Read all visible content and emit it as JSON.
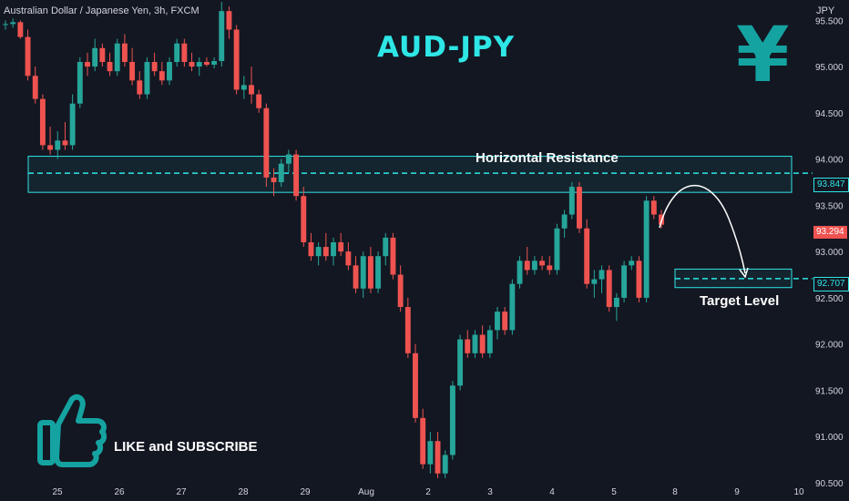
{
  "header": {
    "symbol": "Australian Dollar / Japanese Yen, 3h, FXCM",
    "title": "AUD-JPY",
    "currency": "JPY",
    "yen_sign": "¥"
  },
  "annotations": {
    "resistance_label": "Horizontal Resistance",
    "target_label": "Target Level",
    "cta_label": "LIKE and SUBSCRIBE"
  },
  "colors": {
    "background": "#131722",
    "up": "#26a69a",
    "down": "#ef5350",
    "accent": "#2ee6e6",
    "yen": "#14a3a0",
    "axis_text": "#d1d4dc"
  },
  "price_tags": {
    "resistance": "93.847",
    "current": "93.294",
    "target": "92.707"
  },
  "chart_data": {
    "type": "candlestick",
    "ylim": [
      90.45,
      95.72
    ],
    "yticks": [
      "95.500",
      "95.000",
      "94.500",
      "94.000",
      "93.500",
      "93.000",
      "92.500",
      "92.000",
      "91.500",
      "91.000",
      "90.500"
    ],
    "xticks": [
      "25",
      "26",
      "27",
      "28",
      "29",
      "Aug",
      "2",
      "3",
      "4",
      "5",
      "8",
      "9",
      "10"
    ],
    "resistance_zone": [
      93.64,
      94.03
    ],
    "resistance_level": 93.847,
    "target_zone": [
      92.61,
      92.81
    ],
    "target_level": 92.707,
    "candles": [
      [
        95.45,
        95.5,
        95.4,
        95.46
      ],
      [
        95.46,
        95.52,
        95.42,
        95.48
      ],
      [
        95.48,
        95.5,
        95.3,
        95.32
      ],
      [
        95.32,
        95.4,
        94.85,
        94.9
      ],
      [
        94.9,
        95.0,
        94.6,
        94.65
      ],
      [
        94.65,
        94.7,
        94.1,
        94.15
      ],
      [
        94.15,
        94.35,
        94.05,
        94.1
      ],
      [
        94.1,
        94.3,
        94.0,
        94.2
      ],
      [
        94.2,
        94.4,
        94.1,
        94.15
      ],
      [
        94.15,
        94.7,
        94.1,
        94.6
      ],
      [
        94.6,
        95.1,
        94.55,
        95.05
      ],
      [
        95.05,
        95.15,
        94.9,
        95.0
      ],
      [
        95.0,
        95.3,
        94.95,
        95.2
      ],
      [
        95.2,
        95.25,
        95.0,
        95.05
      ],
      [
        95.05,
        95.15,
        94.9,
        94.95
      ],
      [
        94.95,
        95.3,
        94.9,
        95.25
      ],
      [
        95.25,
        95.35,
        95.0,
        95.05
      ],
      [
        95.05,
        95.2,
        94.8,
        94.85
      ],
      [
        94.85,
        94.95,
        94.65,
        94.7
      ],
      [
        94.7,
        95.1,
        94.65,
        95.05
      ],
      [
        95.05,
        95.15,
        94.9,
        94.95
      ],
      [
        94.95,
        95.05,
        94.8,
        94.85
      ],
      [
        94.85,
        95.1,
        94.8,
        95.05
      ],
      [
        95.05,
        95.3,
        95.0,
        95.25
      ],
      [
        95.25,
        95.3,
        95.0,
        95.05
      ],
      [
        95.05,
        95.15,
        94.95,
        95.0
      ],
      [
        95.0,
        95.1,
        94.9,
        95.05
      ],
      [
        95.05,
        95.1,
        95.0,
        95.02
      ],
      [
        95.02,
        95.1,
        94.98,
        95.06
      ],
      [
        95.06,
        95.7,
        95.0,
        95.6
      ],
      [
        95.6,
        95.65,
        95.3,
        95.4
      ],
      [
        95.4,
        95.45,
        94.7,
        94.75
      ],
      [
        94.75,
        94.9,
        94.65,
        94.8
      ],
      [
        94.8,
        95.0,
        94.6,
        94.7
      ],
      [
        94.7,
        94.75,
        94.5,
        94.55
      ],
      [
        94.55,
        94.6,
        93.7,
        93.8
      ],
      [
        93.8,
        93.9,
        93.6,
        93.75
      ],
      [
        93.75,
        94.0,
        93.7,
        93.95
      ],
      [
        93.95,
        94.1,
        93.85,
        94.05
      ],
      [
        94.05,
        94.1,
        93.55,
        93.6
      ],
      [
        93.6,
        93.7,
        93.05,
        93.1
      ],
      [
        93.1,
        93.2,
        92.9,
        92.95
      ],
      [
        92.95,
        93.1,
        92.85,
        93.05
      ],
      [
        93.05,
        93.2,
        92.9,
        92.95
      ],
      [
        92.95,
        93.15,
        92.85,
        93.1
      ],
      [
        93.1,
        93.2,
        92.95,
        93.0
      ],
      [
        93.0,
        93.1,
        92.8,
        92.85
      ],
      [
        92.85,
        92.95,
        92.55,
        92.6
      ],
      [
        92.6,
        93.0,
        92.5,
        92.95
      ],
      [
        92.95,
        93.05,
        92.55,
        92.6
      ],
      [
        92.6,
        93.0,
        92.55,
        92.95
      ],
      [
        92.95,
        93.2,
        92.85,
        93.15
      ],
      [
        93.15,
        93.2,
        92.7,
        92.75
      ],
      [
        92.75,
        92.85,
        92.35,
        92.4
      ],
      [
        92.4,
        92.5,
        91.85,
        91.9
      ],
      [
        91.9,
        92.0,
        91.15,
        91.2
      ],
      [
        91.2,
        91.3,
        90.65,
        90.7
      ],
      [
        90.7,
        91.05,
        90.6,
        90.95
      ],
      [
        90.95,
        91.05,
        90.55,
        90.6
      ],
      [
        90.6,
        90.85,
        90.55,
        90.8
      ],
      [
        90.8,
        91.6,
        90.75,
        91.55
      ],
      [
        91.55,
        92.1,
        91.5,
        92.05
      ],
      [
        92.05,
        92.15,
        91.85,
        91.9
      ],
      [
        91.9,
        92.15,
        91.85,
        92.1
      ],
      [
        92.1,
        92.2,
        91.85,
        91.9
      ],
      [
        91.9,
        92.2,
        91.85,
        92.15
      ],
      [
        92.15,
        92.4,
        92.05,
        92.35
      ],
      [
        92.35,
        92.4,
        92.1,
        92.15
      ],
      [
        92.15,
        92.7,
        92.1,
        92.65
      ],
      [
        92.65,
        92.95,
        92.6,
        92.9
      ],
      [
        92.9,
        93.05,
        92.75,
        92.8
      ],
      [
        92.8,
        92.95,
        92.75,
        92.9
      ],
      [
        92.9,
        92.95,
        92.8,
        92.85
      ],
      [
        92.85,
        92.95,
        92.75,
        92.8
      ],
      [
        92.8,
        93.3,
        92.75,
        93.25
      ],
      [
        93.25,
        93.45,
        93.15,
        93.4
      ],
      [
        93.4,
        93.75,
        93.35,
        93.7
      ],
      [
        93.7,
        93.75,
        93.2,
        93.25
      ],
      [
        93.25,
        93.35,
        92.6,
        92.65
      ],
      [
        92.65,
        92.8,
        92.5,
        92.7
      ],
      [
        92.7,
        92.85,
        92.55,
        92.8
      ],
      [
        92.8,
        92.85,
        92.35,
        92.4
      ],
      [
        92.4,
        92.55,
        92.25,
        92.5
      ],
      [
        92.5,
        92.9,
        92.45,
        92.85
      ],
      [
        92.85,
        92.95,
        92.8,
        92.9
      ],
      [
        92.9,
        92.95,
        92.45,
        92.5
      ],
      [
        92.5,
        93.6,
        92.45,
        93.55
      ],
      [
        93.55,
        93.6,
        93.35,
        93.4
      ],
      [
        93.4,
        93.45,
        93.25,
        93.29
      ]
    ]
  }
}
